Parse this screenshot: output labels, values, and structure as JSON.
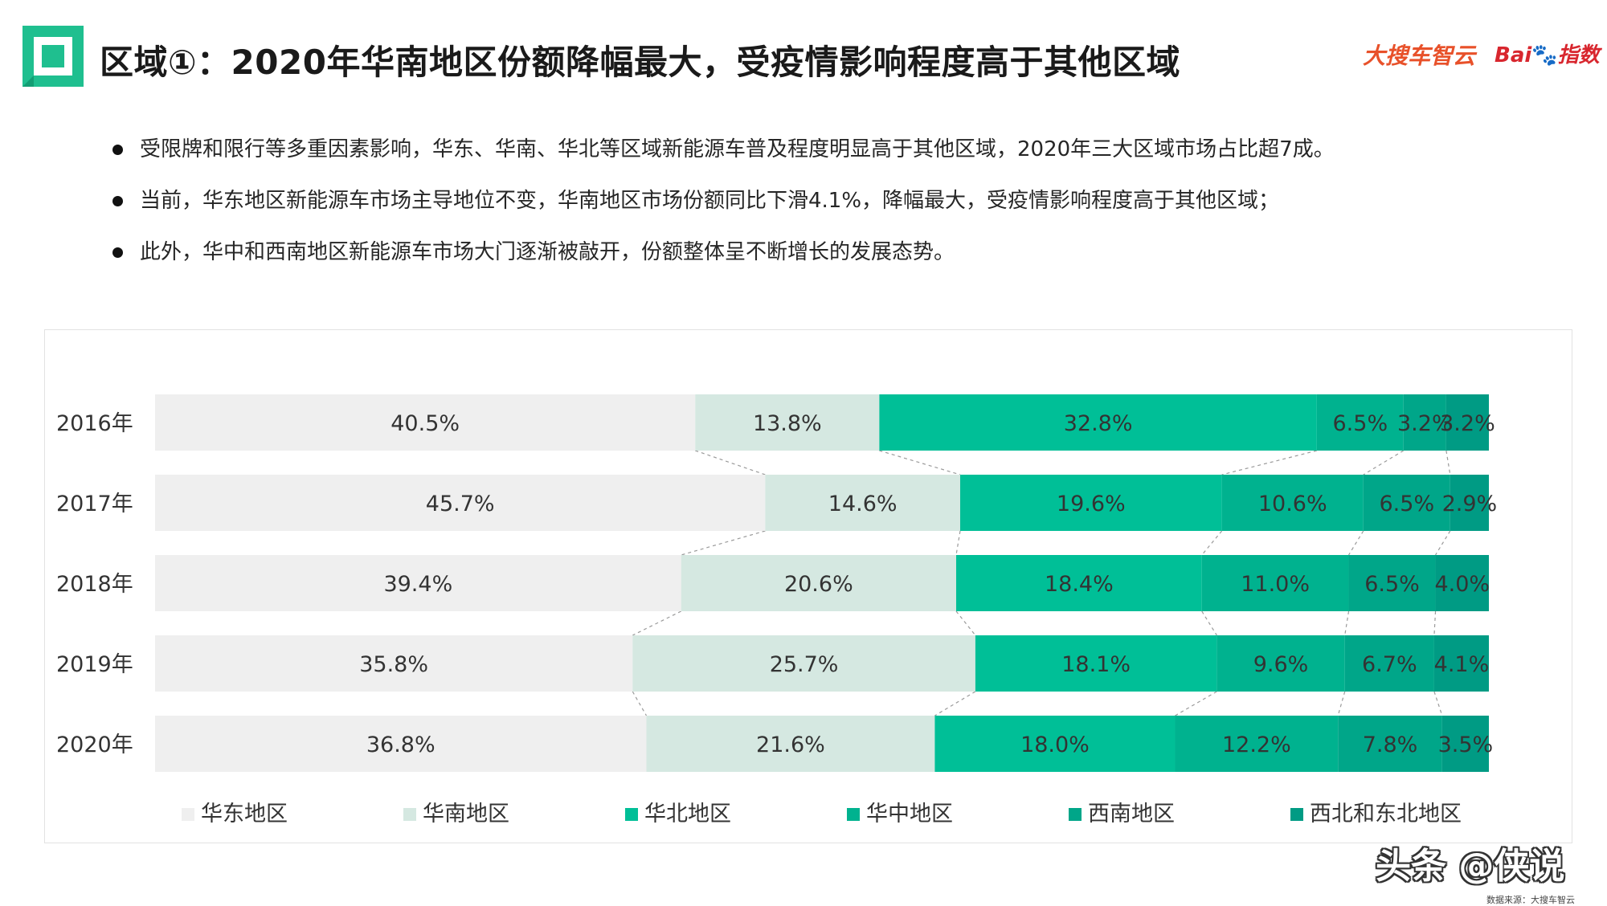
{
  "header": {
    "title": "区域①：2020年华南地区份额降幅最大，受疫情影响程度高于其他区域",
    "brand_left": "大搜车智云",
    "brand_right_a": "Bai",
    "brand_right_b": "指数"
  },
  "bullets": [
    "受限牌和限行等多重因素影响，华东、华南、华北等区域新能源车普及程度明显高于其他区域，2020年三大区域市场占比超7成。",
    "当前，华东地区新能源车市场主导地位不变，华南地区市场份额同比下滑4.1%，降幅最大，受疫情影响程度高于其他区域；",
    "此外，华中和西南地区新能源车市场大门逐渐被敲开，份额整体呈不断增长的发展态势。"
  ],
  "colors": {
    "accent": "#00b894",
    "title_text": "#1a1a1a"
  },
  "chart_data": {
    "type": "bar",
    "orientation": "horizontal",
    "stacked": true,
    "normalized_percent": true,
    "categories": [
      "2016年",
      "2017年",
      "2018年",
      "2019年",
      "2020年"
    ],
    "series": [
      {
        "name": "华东地区",
        "color": "#efefef",
        "values": [
          40.5,
          45.7,
          39.4,
          35.8,
          36.8
        ]
      },
      {
        "name": "华南地区",
        "color": "#d5e8e1",
        "values": [
          13.8,
          14.6,
          20.6,
          25.7,
          21.6
        ]
      },
      {
        "name": "华北地区",
        "color": "#00bf97",
        "values": [
          32.8,
          19.6,
          18.4,
          18.1,
          18.0
        ]
      },
      {
        "name": "华中地区",
        "color": "#00b28f",
        "values": [
          6.5,
          10.6,
          11.0,
          9.6,
          12.2
        ]
      },
      {
        "name": "西南地区",
        "color": "#00a689",
        "values": [
          3.2,
          6.5,
          6.5,
          6.7,
          7.8
        ]
      },
      {
        "name": "西北和东北地区",
        "color": "#009b84",
        "values": [
          3.2,
          2.9,
          4.0,
          4.1,
          3.5
        ]
      }
    ],
    "data_labels": [
      [
        "40.5%",
        "13.8%",
        "32.8%",
        "6.5%",
        "3.2%",
        "3.2%"
      ],
      [
        "45.7%",
        "14.6%",
        "19.6%",
        "10.6%",
        "6.5%",
        "2.9%"
      ],
      [
        "39.4%",
        "20.6%",
        "18.4%",
        "11.0%",
        "6.5%",
        "4.0%"
      ],
      [
        "35.8%",
        "25.7%",
        "18.1%",
        "9.6%",
        "6.7%",
        "4.1%"
      ],
      [
        "36.8%",
        "21.6%",
        "18.0%",
        "12.2%",
        "7.8%",
        "3.5%"
      ]
    ],
    "connector_lines": "dashed",
    "legend_position": "bottom",
    "grid": false
  },
  "footer": {
    "watermark": "头条 @侠说",
    "source": "数据来源：大搜车智云"
  }
}
